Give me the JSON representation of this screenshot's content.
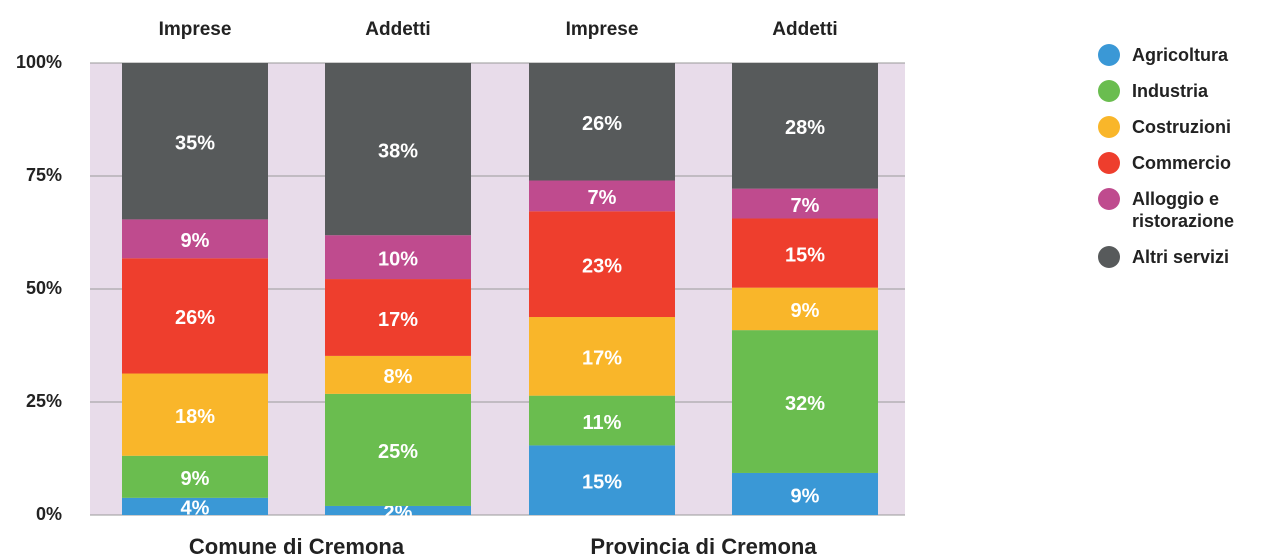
{
  "chart_data": {
    "type": "stacked_bar",
    "categories": [
      "Imprese",
      "Addetti",
      "Imprese",
      "Addetti"
    ],
    "groups": [
      "Comune di Cremona",
      "Provincia di Cremona"
    ],
    "series": [
      {
        "name": "Agricoltura",
        "color": "#3a98d6",
        "values": [
          3.8,
          2.0,
          15.4,
          9.3
        ],
        "value_labels": [
          "4%",
          "2%",
          "15%",
          "9%"
        ]
      },
      {
        "name": "Industria",
        "color": "#6abd4f",
        "values": [
          9.3,
          24.8,
          11.0,
          31.6
        ],
        "value_labels": [
          "9%",
          "25%",
          "11%",
          "32%"
        ]
      },
      {
        "name": "Costruzioni",
        "color": "#f9b62a",
        "values": [
          18.2,
          8.4,
          17.4,
          9.4
        ],
        "value_labels": [
          "18%",
          "8%",
          "17%",
          "9%"
        ]
      },
      {
        "name": "Commercio",
        "color": "#ee3e2d",
        "values": [
          25.5,
          17.0,
          23.4,
          15.3
        ],
        "value_labels": [
          "26%",
          "17%",
          "23%",
          "15%"
        ]
      },
      {
        "name": "Alloggio e ristorazione",
        "color": "#bf4b8e",
        "values": [
          8.6,
          9.7,
          6.8,
          6.6
        ],
        "value_labels": [
          "9%",
          "10%",
          "7%",
          "7%"
        ]
      },
      {
        "name": "Altri servizi",
        "color": "#575a5b",
        "values": [
          34.6,
          38.1,
          26.0,
          27.8
        ],
        "value_labels": [
          "35%",
          "38%",
          "26%",
          "28%"
        ]
      }
    ],
    "ylim": [
      0,
      100
    ],
    "yticks": [
      {
        "value": 0,
        "label": "0%"
      },
      {
        "value": 25,
        "label": "25%"
      },
      {
        "value": 50,
        "label": "50%"
      },
      {
        "value": 75,
        "label": "75%"
      },
      {
        "value": 100,
        "label": "100%"
      }
    ],
    "grid": true,
    "legend": "right"
  }
}
